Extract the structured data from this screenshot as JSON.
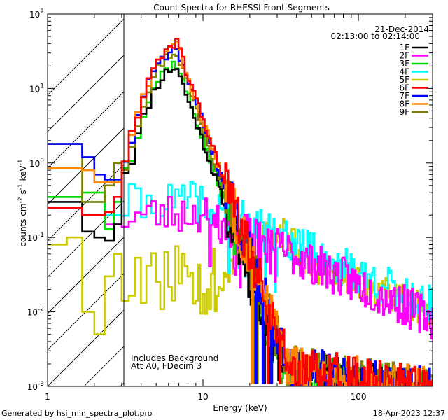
{
  "chart_data": {
    "type": "line",
    "title": "Count Spectra for RHESSI Front Segments",
    "xlabel": "Energy (keV)",
    "ylabel_parts": [
      "counts cm",
      "-2",
      " s",
      "-1",
      " keV",
      "-1"
    ],
    "x_scale": "log",
    "y_scale": "log",
    "xlim": [
      1,
      300
    ],
    "ylim": [
      0.001,
      100
    ],
    "x_ticks": [
      {
        "v": 1,
        "label": "1"
      },
      {
        "v": 10,
        "label": "10"
      },
      {
        "v": 100,
        "label": "100"
      }
    ],
    "y_ticks": [
      {
        "v": 0.001,
        "base": "10",
        "exp": "-3"
      },
      {
        "v": 0.01,
        "base": "10",
        "exp": "-2"
      },
      {
        "v": 0.1,
        "base": "10",
        "exp": "-1"
      },
      {
        "v": 1,
        "base": "10",
        "exp": "0"
      },
      {
        "v": 10,
        "base": "10",
        "exp": "1"
      },
      {
        "v": 100,
        "base": "10",
        "exp": "2"
      }
    ],
    "excluded_region_kev": [
      1,
      3
    ],
    "legend_header": [
      "21-Dec-2014",
      "02:13:00 to 02:14:00"
    ],
    "annotations": [
      "Includes Background",
      "Att A0, FDecim 3"
    ],
    "series": [
      {
        "name": "1F",
        "color": "#000000",
        "group": "front",
        "seed": 11,
        "mul": 0.8,
        "pk": 24
      },
      {
        "name": "2F",
        "color": "#ff00ff",
        "group": "rear",
        "seed": 23,
        "mul": 1.15
      },
      {
        "name": "3F",
        "color": "#00dd00",
        "group": "front",
        "seed": 37,
        "mul": 0.82,
        "pk": 26
      },
      {
        "name": "4F",
        "color": "#00ffff",
        "group": "rear",
        "seed": 41,
        "mul": 1.6
      },
      {
        "name": "5F",
        "color": "#cccc00",
        "group": "low",
        "seed": 53,
        "mul": 1.0
      },
      {
        "name": "6F",
        "color": "#ff0000",
        "group": "front",
        "seed": 61,
        "mul": 0.9,
        "pk": 44
      },
      {
        "name": "7F",
        "color": "#0000ff",
        "group": "front",
        "seed": 71,
        "mul": 0.95,
        "pk": 36
      },
      {
        "name": "8F",
        "color": "#ff8800",
        "group": "front",
        "seed": 83,
        "mul": 0.93,
        "pk": 40
      },
      {
        "name": "9F",
        "color": "#808000",
        "group": "front",
        "seed": 97,
        "mul": 0.92,
        "pk": 33
      }
    ]
  },
  "footer": {
    "left": "Generated by hsi_min_spectra_plot.pro",
    "right": "18-Apr-2023 12:37"
  }
}
